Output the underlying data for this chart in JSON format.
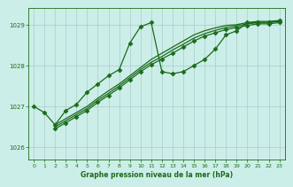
{
  "background_color": "#cceee8",
  "grid_color": "#aacccc",
  "line_color": "#1a6b1a",
  "marker_color": "#1a6b1a",
  "xlabel": "Graphe pression niveau de la mer (hPa)",
  "xlabel_color": "#1a6b1a",
  "xlim": [
    -0.5,
    23.5
  ],
  "ylim": [
    1025.7,
    1029.4
  ],
  "yticks": [
    1026,
    1027,
    1028,
    1029
  ],
  "xticks": [
    0,
    1,
    2,
    3,
    4,
    5,
    6,
    7,
    8,
    9,
    10,
    11,
    12,
    13,
    14,
    15,
    16,
    17,
    18,
    19,
    20,
    21,
    22,
    23
  ],
  "lines": [
    {
      "comment": "line1 - top line with peak at hour 11, going high with markers",
      "x": [
        0,
        1,
        2,
        3,
        4,
        5,
        6,
        7,
        8,
        9,
        10,
        11,
        12,
        13,
        14,
        15,
        16,
        17,
        18,
        19,
        20,
        21,
        22,
        23
      ],
      "y": [
        1027.0,
        1026.85,
        1026.55,
        1026.9,
        1027.05,
        1027.35,
        1027.55,
        1027.75,
        1027.9,
        1028.55,
        1028.95,
        1029.05,
        1027.85,
        1027.8,
        1027.85,
        1028.0,
        1028.15,
        1028.4,
        1028.75,
        1028.85,
        1029.05,
        1029.05,
        1029.05,
        1029.1
      ],
      "marker": "D",
      "markersize": 2.5,
      "linewidth": 0.9
    },
    {
      "comment": "line2 - straight increasing from bottom-left to top-right, no peak",
      "x": [
        2,
        3,
        4,
        5,
        6,
        7,
        8,
        9,
        10,
        11,
        12,
        13,
        14,
        15,
        16,
        17,
        18,
        19,
        20,
        21,
        22,
        23
      ],
      "y": [
        1026.55,
        1026.7,
        1026.85,
        1027.0,
        1027.2,
        1027.38,
        1027.55,
        1027.75,
        1027.95,
        1028.15,
        1028.3,
        1028.45,
        1028.6,
        1028.75,
        1028.85,
        1028.92,
        1028.98,
        1029.0,
        1029.05,
        1029.08,
        1029.08,
        1029.1
      ],
      "marker": null,
      "markersize": 0,
      "linewidth": 0.9
    },
    {
      "comment": "line3 - second straight line slightly below line2",
      "x": [
        2,
        3,
        4,
        5,
        6,
        7,
        8,
        9,
        10,
        11,
        12,
        13,
        14,
        15,
        16,
        17,
        18,
        19,
        20,
        21,
        22,
        23
      ],
      "y": [
        1026.5,
        1026.65,
        1026.8,
        1026.95,
        1027.15,
        1027.32,
        1027.5,
        1027.7,
        1027.9,
        1028.08,
        1028.22,
        1028.38,
        1028.52,
        1028.67,
        1028.78,
        1028.86,
        1028.93,
        1028.97,
        1029.02,
        1029.05,
        1029.05,
        1029.08
      ],
      "marker": null,
      "markersize": 0,
      "linewidth": 0.9
    },
    {
      "comment": "line4 - third straight line, lowest of the straight ones",
      "x": [
        2,
        3,
        4,
        5,
        6,
        7,
        8,
        9,
        10,
        11,
        12,
        13,
        14,
        15,
        16,
        17,
        18,
        19,
        20,
        21,
        22,
        23
      ],
      "y": [
        1026.45,
        1026.6,
        1026.75,
        1026.9,
        1027.1,
        1027.27,
        1027.45,
        1027.65,
        1027.85,
        1028.02,
        1028.16,
        1028.3,
        1028.45,
        1028.6,
        1028.72,
        1028.8,
        1028.88,
        1028.93,
        1028.98,
        1029.02,
        1029.02,
        1029.05
      ],
      "marker": "D",
      "markersize": 2.5,
      "linewidth": 0.9
    }
  ]
}
